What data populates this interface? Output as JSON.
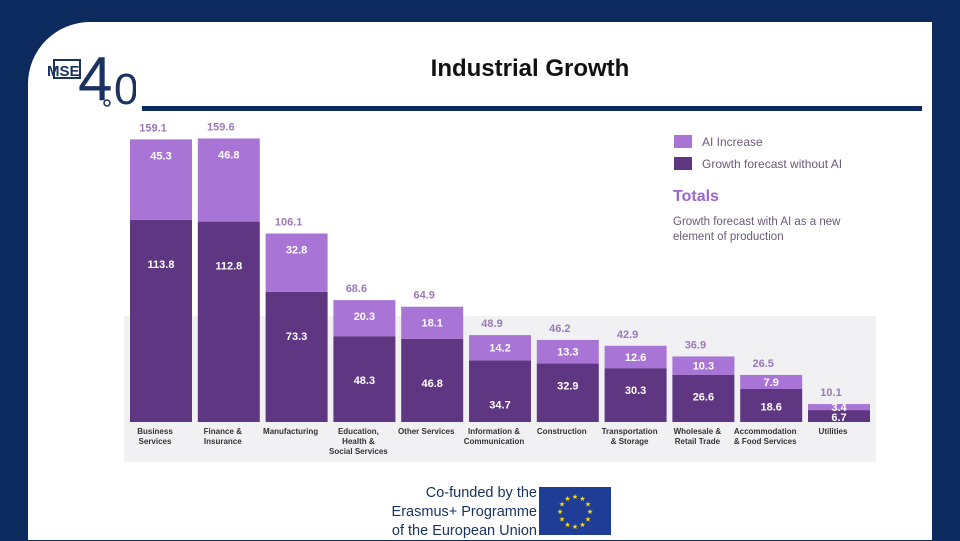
{
  "slide": {
    "title": "Industrial Growth",
    "logo": {
      "letters": "MSE",
      "version_major": "4",
      "version_minor": "0"
    }
  },
  "footer": {
    "line1": "Co-funded by the",
    "line2": "Erasmus+ Programme",
    "line3": "of the European Union",
    "flag_icon": "eu-flag-icon"
  },
  "colors": {
    "ai_increase": "#a874d6",
    "growth_forecast": "#5e3682",
    "title_rule": "#0d2a5e",
    "totals_heading": "#9966cc"
  },
  "chart_data": {
    "type": "bar",
    "stacked": true,
    "categories": [
      [
        "Business",
        "Services"
      ],
      [
        "Finance &",
        "Insurance"
      ],
      [
        "Manufacturing"
      ],
      [
        "Education,",
        "Health &",
        "Social Services"
      ],
      [
        "Other Services"
      ],
      [
        "Information &",
        "Communication"
      ],
      [
        "Construction"
      ],
      [
        "Transportation",
        "& Storage"
      ],
      [
        "Wholesale &",
        "Retail Trade"
      ],
      [
        "Accommodation",
        "& Food Services"
      ],
      [
        "Utilities"
      ]
    ],
    "series": [
      {
        "name": "Growth forecast without AI",
        "values": [
          113.8,
          112.8,
          73.3,
          48.3,
          46.8,
          34.7,
          32.9,
          30.3,
          26.6,
          18.6,
          6.7
        ]
      },
      {
        "name": "AI Increase",
        "values": [
          45.3,
          46.8,
          32.8,
          20.3,
          18.1,
          14.2,
          13.3,
          12.6,
          10.3,
          7.9,
          3.4
        ]
      }
    ],
    "totals": [
      159.1,
      159.6,
      106.1,
      68.6,
      64.9,
      48.9,
      46.2,
      42.9,
      36.9,
      26.5,
      10.1
    ],
    "legend": {
      "items": [
        "AI Increase",
        "Growth forecast without AI"
      ],
      "totals_heading": "Totals",
      "totals_note_line1": "Growth forecast with AI as a new",
      "totals_note_line2": "element of production",
      "position": "top-right"
    },
    "ylim": [
      0,
      170
    ],
    "grid": false,
    "title": "",
    "xlabel": "",
    "ylabel": ""
  }
}
